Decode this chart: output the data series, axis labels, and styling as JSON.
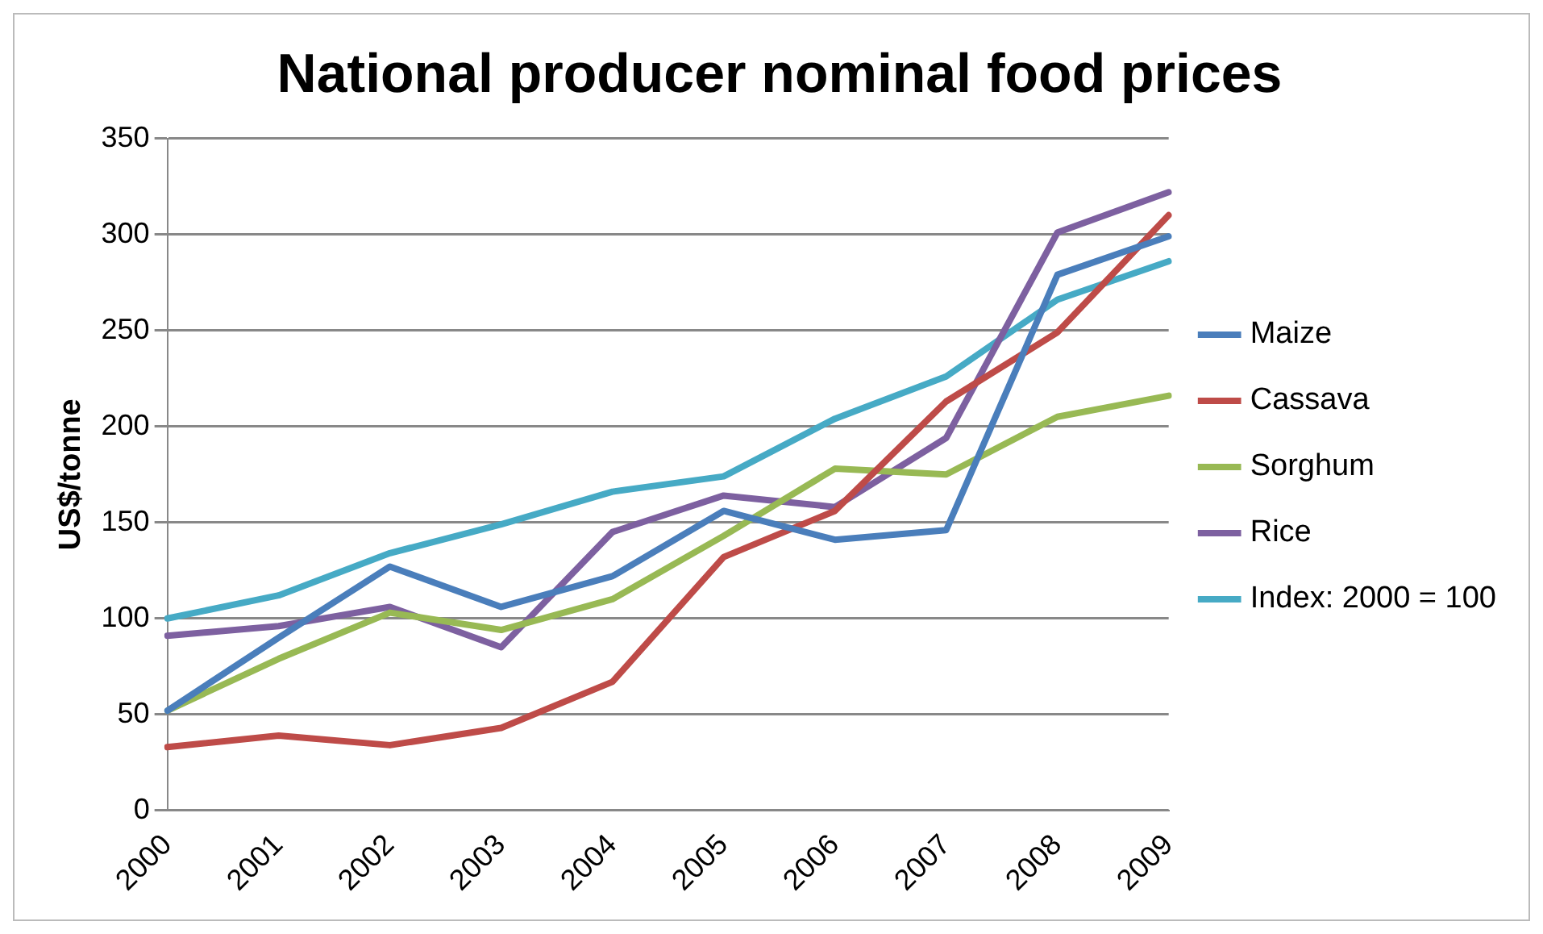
{
  "chart_data": {
    "type": "line",
    "title": "National producer nominal food prices",
    "ylabel": "US$/tonne",
    "categories": [
      "2000",
      "2001",
      "2002",
      "2003",
      "2004",
      "2005",
      "2006",
      "2007",
      "2008",
      "2009"
    ],
    "series": [
      {
        "name": "Maize",
        "color": "#4a7ebb",
        "values": [
          52,
          90,
          127,
          106,
          122,
          156,
          141,
          146,
          279,
          299
        ]
      },
      {
        "name": "Cassava",
        "color": "#be4b48",
        "values": [
          33,
          39,
          34,
          43,
          67,
          132,
          156,
          213,
          249,
          310
        ]
      },
      {
        "name": "Sorghum",
        "color": "#98b954",
        "values": [
          52,
          79,
          103,
          94,
          110,
          143,
          178,
          175,
          205,
          216
        ]
      },
      {
        "name": "Rice",
        "color": "#7d60a0",
        "values": [
          91,
          96,
          106,
          85,
          145,
          164,
          158,
          194,
          301,
          322
        ]
      },
      {
        "name": "Index: 2000 = 100",
        "color": "#46aac5",
        "values": [
          100,
          112,
          134,
          149,
          166,
          174,
          204,
          226,
          266,
          286
        ]
      }
    ],
    "ylim": [
      0,
      350
    ],
    "yticks": [
      0,
      50,
      100,
      150,
      200,
      250,
      300,
      350
    ],
    "grid": "y",
    "legend": "right",
    "marker": "none",
    "line_style": "solid"
  }
}
